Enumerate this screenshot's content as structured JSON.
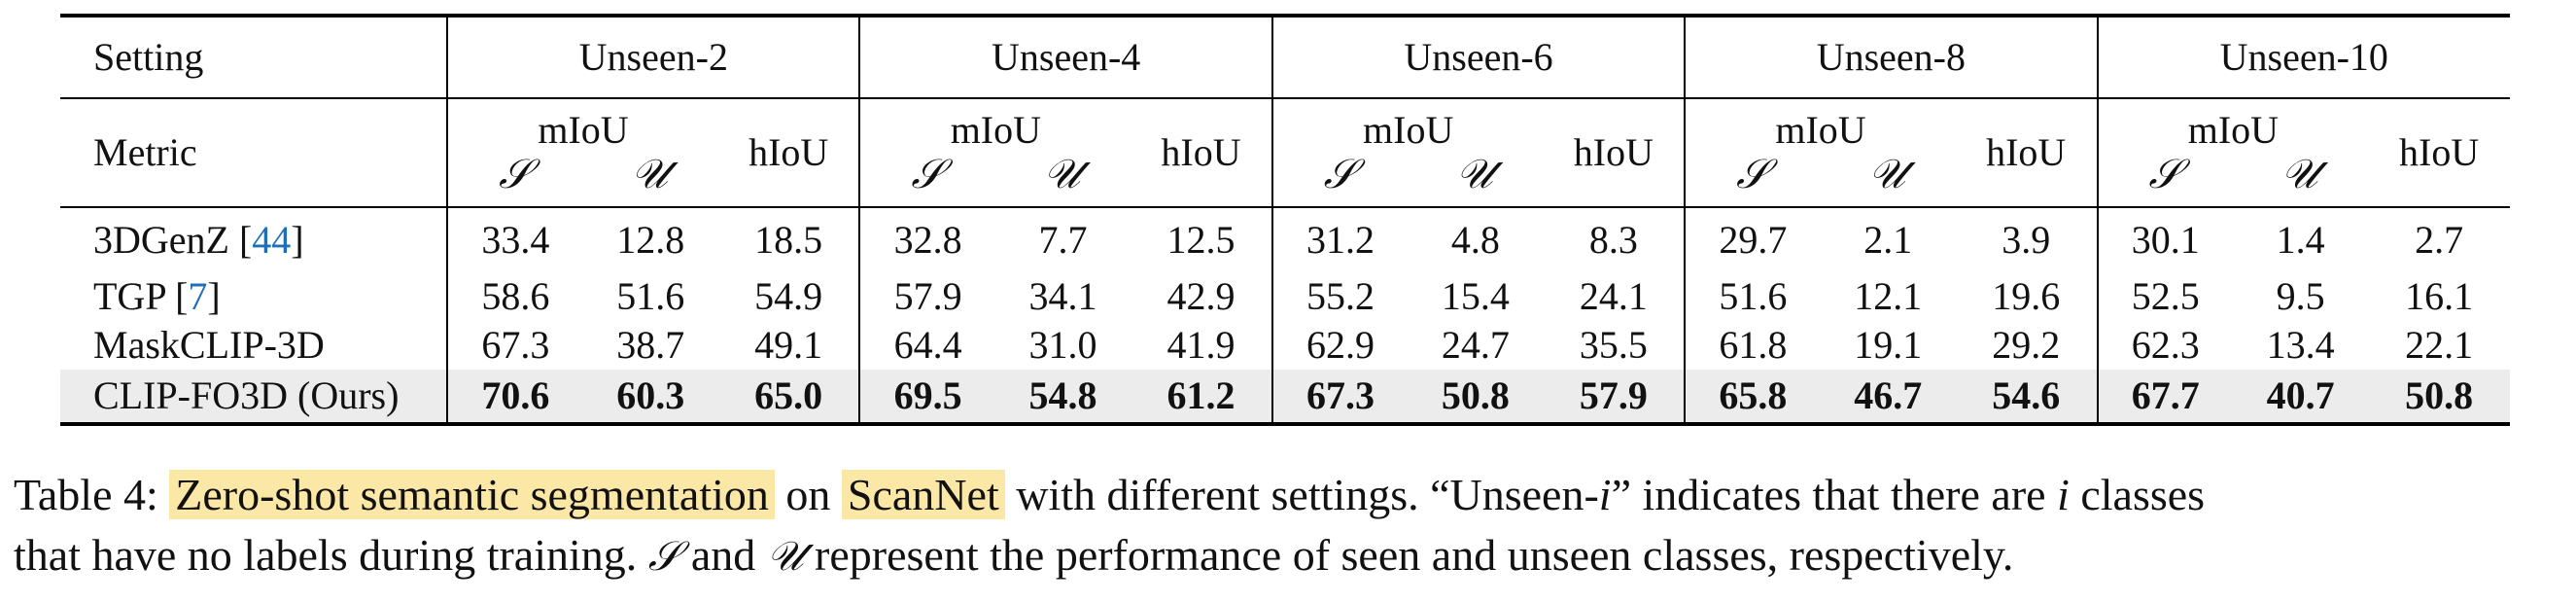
{
  "table": {
    "setting_label": "Setting",
    "metric_label": "Metric",
    "settings": [
      "Unseen-2",
      "Unseen-4",
      "Unseen-6",
      "Unseen-8",
      "Unseen-10"
    ],
    "miou_label": "mIoU",
    "hiou_label": "hIoU",
    "seen_symbol": "𝒮",
    "unseen_symbol": "𝒰",
    "rows": [
      {
        "method": "3DGenZ",
        "cite": "44",
        "values": [
          "33.4",
          "12.8",
          "18.5",
          "32.8",
          "7.7",
          "12.5",
          "31.2",
          "4.8",
          "8.3",
          "29.7",
          "2.1",
          "3.9",
          "30.1",
          "1.4",
          "2.7"
        ]
      },
      {
        "method": "TGP",
        "cite": "7",
        "values": [
          "58.6",
          "51.6",
          "54.9",
          "57.9",
          "34.1",
          "42.9",
          "55.2",
          "15.4",
          "24.1",
          "51.6",
          "12.1",
          "19.6",
          "52.5",
          "9.5",
          "16.1"
        ]
      },
      {
        "method": "MaskCLIP-3D",
        "cite": "",
        "values": [
          "67.3",
          "38.7",
          "49.1",
          "64.4",
          "31.0",
          "41.9",
          "62.9",
          "24.7",
          "35.5",
          "61.8",
          "19.1",
          "29.2",
          "62.3",
          "13.4",
          "22.1"
        ]
      },
      {
        "method": "CLIP-FO3D (Ours)",
        "cite": "",
        "values": [
          "70.6",
          "60.3",
          "65.0",
          "69.5",
          "54.8",
          "61.2",
          "67.3",
          "50.8",
          "57.9",
          "65.8",
          "46.7",
          "54.6",
          "67.7",
          "40.7",
          "50.8"
        ]
      }
    ]
  },
  "caption": {
    "line1": {
      "prefix": "Table 4: ",
      "highlight1": "Zero-shot semantic segmentation",
      "mid1": " on ",
      "highlight2": "ScanNet",
      "mid2": " with different settings. “Unseen-",
      "var_i": "i",
      "mid3": "” indicates that there are ",
      "var_i2": "i",
      "tail": " classes"
    },
    "line2": {
      "part1": "that have no labels during training. ",
      "sym_s": "𝒮",
      "part2": " and ",
      "sym_u": "𝒰",
      "part3": " represent the performance of seen and unseen classes, respectively."
    }
  }
}
